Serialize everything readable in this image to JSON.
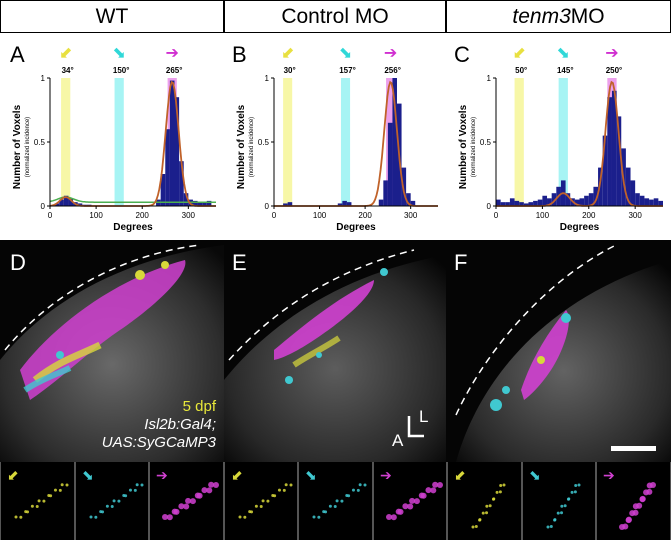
{
  "columns": [
    {
      "title_plain": "WT",
      "title_italic": "",
      "title_suffix": ""
    },
    {
      "title_plain": "Control MO",
      "title_italic": "",
      "title_suffix": ""
    },
    {
      "title_plain": "",
      "title_italic": "tenm3",
      "title_suffix": " MO"
    }
  ],
  "histogram_panels": [
    {
      "letter": "A",
      "angles": [
        "34°",
        "150°",
        "265°"
      ]
    },
    {
      "letter": "B",
      "angles": [
        "30°",
        "157°",
        "256°"
      ]
    },
    {
      "letter": "C",
      "angles": [
        "50°",
        "145°",
        "250°"
      ]
    }
  ],
  "image_panels": [
    {
      "letter": "D"
    },
    {
      "letter": "E"
    },
    {
      "letter": "F"
    }
  ],
  "overlay": {
    "stage": "5 dpf",
    "line1": "Isl2b:Gal4;",
    "line2": "UAS:SyGCaMP3",
    "axis_a": "A",
    "axis_l": "L"
  },
  "colors": {
    "yellow": "#f4f48a",
    "cyan": "#8af0f0",
    "magenta": "#e060e0",
    "bar": "#1b1f8c",
    "fit": "#c0622a",
    "green_fit": "#4caf50"
  },
  "chart_data": [
    {
      "type": "bar",
      "title": "",
      "xlabel": "Degrees",
      "ylabel": "Number of Voxels",
      "ylabel_sub": "(normalized incidence)",
      "xlim": [
        0,
        360
      ],
      "ylim": [
        0,
        1
      ],
      "xticks": [
        "0",
        "100",
        "200",
        "300"
      ],
      "yticks": [
        "0",
        "0.5",
        "1"
      ],
      "bins_x": [
        10,
        20,
        30,
        40,
        50,
        60,
        70,
        80,
        230,
        240,
        250,
        260,
        270,
        280,
        290,
        300,
        310,
        320,
        330,
        340
      ],
      "bins_y": [
        0.02,
        0.05,
        0.08,
        0.06,
        0.03,
        0.02,
        0.01,
        0.01,
        0.05,
        0.25,
        0.6,
        0.98,
        0.85,
        0.35,
        0.1,
        0.05,
        0.04,
        0.03,
        0.03,
        0.04
      ],
      "tuning_bands": [
        34,
        150,
        265
      ]
    },
    {
      "type": "bar",
      "title": "",
      "xlabel": "Degrees",
      "ylabel": "Number of Voxels",
      "ylabel_sub": "(normalized incidence)",
      "xlim": [
        0,
        360
      ],
      "ylim": [
        0,
        1
      ],
      "xticks": [
        "0",
        "100",
        "200",
        "300"
      ],
      "yticks": [
        "0",
        "0.5",
        "1"
      ],
      "bins_x": [
        20,
        30,
        140,
        150,
        160,
        230,
        240,
        250,
        260,
        270,
        280,
        290,
        300
      ],
      "bins_y": [
        0.02,
        0.03,
        0.02,
        0.04,
        0.03,
        0.05,
        0.2,
        0.65,
        1.0,
        0.8,
        0.3,
        0.1,
        0.04
      ],
      "tuning_bands": [
        30,
        157,
        256
      ]
    },
    {
      "type": "bar",
      "title": "",
      "xlabel": "Degrees",
      "ylabel": "Number of Voxels",
      "ylabel_sub": "(normalized incidence)",
      "xlim": [
        0,
        360
      ],
      "ylim": [
        0,
        1
      ],
      "xticks": [
        "0",
        "100",
        "200",
        "300"
      ],
      "yticks": [
        "0",
        "0.5",
        "1"
      ],
      "bins_x": [
        0,
        10,
        20,
        30,
        40,
        50,
        60,
        70,
        80,
        90,
        100,
        110,
        120,
        130,
        140,
        150,
        160,
        170,
        180,
        190,
        200,
        210,
        220,
        230,
        240,
        250,
        260,
        270,
        280,
        290,
        300,
        310,
        320,
        330,
        340,
        350
      ],
      "bins_y": [
        0.05,
        0.03,
        0.03,
        0.06,
        0.04,
        0.03,
        0.02,
        0.03,
        0.04,
        0.05,
        0.08,
        0.06,
        0.1,
        0.15,
        0.2,
        0.1,
        0.06,
        0.05,
        0.06,
        0.08,
        0.1,
        0.15,
        0.3,
        0.55,
        0.85,
        0.9,
        0.7,
        0.45,
        0.3,
        0.2,
        0.1,
        0.08,
        0.06,
        0.05,
        0.06,
        0.04
      ],
      "tuning_bands": [
        50,
        145,
        250
      ]
    }
  ]
}
